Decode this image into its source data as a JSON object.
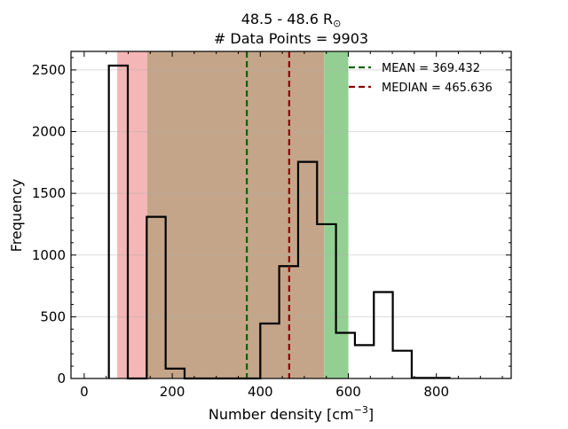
{
  "chart_data": {
    "type": "histogram",
    "title_line1": "48.5 - 48.6 R",
    "title_sun_symbol": "⊙",
    "title_line2": "# Data Points = 9903",
    "xlabel": "Number density [cm",
    "xlabel_exp": "−3",
    "xlabel_close": "]",
    "ylabel": "Frequency",
    "xlim": [
      -30,
      970
    ],
    "ylim": [
      0,
      2650
    ],
    "x_ticks": [
      0,
      200,
      400,
      600,
      800
    ],
    "y_ticks": [
      0,
      500,
      1000,
      1500,
      2000,
      2500
    ],
    "x_minor_step": 50,
    "y_minor_step": 100,
    "grid": "horizontal",
    "bin_edges": [
      56,
      99,
      142,
      185,
      228,
      271,
      314,
      357,
      400,
      443,
      486,
      529,
      572,
      615,
      658,
      701,
      744,
      787,
      830
    ],
    "counts": [
      2535,
      0,
      1310,
      80,
      0,
      0,
      0,
      0,
      445,
      910,
      1755,
      1250,
      370,
      270,
      700,
      225,
      5,
      5
    ],
    "shaded_regions": [
      {
        "x0": 75,
        "x1": 143,
        "color": "#f4b6b6"
      },
      {
        "x0": 143,
        "x1": 545,
        "color": "#c4a589"
      },
      {
        "x0": 545,
        "x1": 600,
        "color": "#93cf93"
      }
    ],
    "mean": {
      "value": 369.432,
      "label": "MEAN = 369.432",
      "color": "#006400"
    },
    "median": {
      "value": 465.636,
      "label": "MEDIAN = 465.636",
      "color": "#8b0000"
    },
    "legend_position": "top-right"
  }
}
